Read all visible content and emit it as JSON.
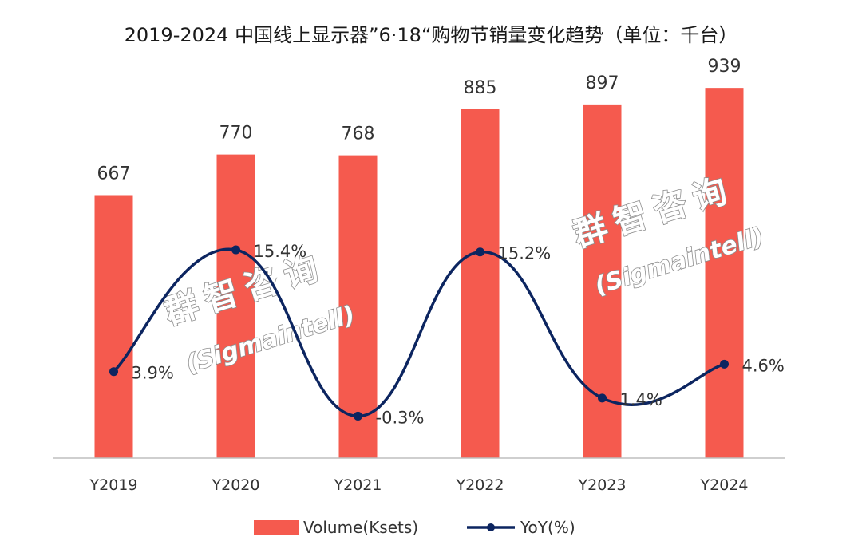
{
  "title": "2019-2024 中国线上显示器”6·18“购物节销量变化趋势（单位：千台）",
  "chart_data": {
    "type": "bar",
    "categories": [
      "Y2019",
      "Y2020",
      "Y2021",
      "Y2022",
      "Y2023",
      "Y2024"
    ],
    "series": [
      {
        "name": "Volume(Ksets)",
        "type": "bar",
        "values": [
          667,
          770,
          768,
          885,
          897,
          939
        ],
        "labels": [
          "667",
          "770",
          "768",
          "885",
          "897",
          "939"
        ],
        "color": "#f55a4e"
      },
      {
        "name": "YoY(%)",
        "type": "line",
        "smooth": true,
        "values": [
          3.9,
          15.4,
          -0.3,
          15.2,
          1.4,
          4.6
        ],
        "labels": [
          "3.9%",
          "15.4%",
          "-0.3%",
          "15.2%",
          "1.4%",
          "4.6%"
        ],
        "color": "#0c2560"
      }
    ],
    "ylim_volume": [
      0,
      1000
    ],
    "ylim_yoy": [
      -2,
      20
    ],
    "legend_position": "bottom"
  },
  "watermarks": [
    {
      "cn": "群智咨询",
      "en": "(Sigmaintell)"
    },
    {
      "cn": "群智咨询",
      "en": "(Sigmaintell)"
    }
  ]
}
